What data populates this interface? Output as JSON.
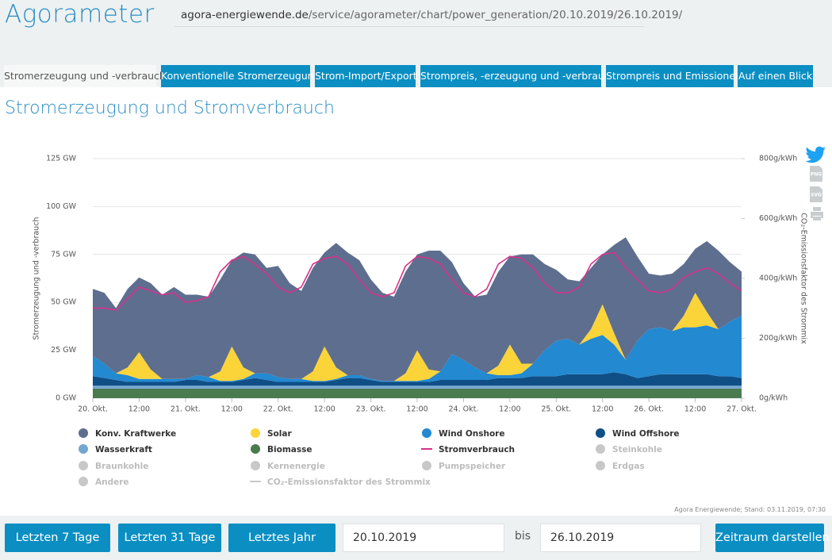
{
  "header": {
    "title": "Agorameter",
    "url_domain": "agora-energiewende.de",
    "url_path": "/service/agorameter/chart/power_generation/20.10.2019/26.10.2019/"
  },
  "tabs": [
    "Stromerzeugung und -verbrauch",
    "Konventionelle Stromerzeugung",
    "Strom-Import/Export",
    "Strompreis, -erzeugung und -verbrauch",
    "Strompreis und Emissionen",
    "Auf einen Blick"
  ],
  "heading": "Stromerzeugung und Stromverbrauch",
  "export": [
    "PNG",
    "SVG"
  ],
  "chart_data": {
    "type": "area",
    "stacked": true,
    "ylabel": "Stromerzeugung und -verbrauch",
    "y2label": "CO₂-Emissionsfaktor des Strommix",
    "credit": "Agora Energiewende; Stand: 03.11.2019, 07:30",
    "grid": true,
    "x": [
      0,
      3,
      6,
      9,
      12,
      15,
      18,
      21,
      24,
      27,
      30,
      33,
      36,
      39,
      42,
      45,
      48,
      51,
      54,
      57,
      60,
      63,
      66,
      69,
      72,
      75,
      78,
      81,
      84,
      87,
      90,
      93,
      96,
      99,
      102,
      105,
      108,
      111,
      114,
      117,
      120,
      123,
      126,
      129,
      132,
      135,
      138,
      141,
      144,
      147,
      150,
      153,
      156,
      159,
      162,
      165,
      168
    ],
    "xlim": [
      0,
      168
    ],
    "xticks": [
      {
        "value": 0,
        "label": "20. Okt."
      },
      {
        "value": 12,
        "label": "12:00"
      },
      {
        "value": 24,
        "label": "21. Okt."
      },
      {
        "value": 36,
        "label": "12:00"
      },
      {
        "value": 48,
        "label": "22. Okt."
      },
      {
        "value": 60,
        "label": "12:00"
      },
      {
        "value": 72,
        "label": "23. Okt."
      },
      {
        "value": 84,
        "label": "12:00"
      },
      {
        "value": 96,
        "label": "24. Okt."
      },
      {
        "value": 108,
        "label": "12:00"
      },
      {
        "value": 120,
        "label": "25. Okt."
      },
      {
        "value": 132,
        "label": "12:00"
      },
      {
        "value": 144,
        "label": "26. Okt."
      },
      {
        "value": 156,
        "label": "12:00"
      },
      {
        "value": 168,
        "label": "27. Okt."
      }
    ],
    "ylim": [
      0,
      125
    ],
    "yticks": [
      {
        "value": 0,
        "label": "0 GW"
      },
      {
        "value": 25,
        "label": "25 GW"
      },
      {
        "value": 50,
        "label": "50 GW"
      },
      {
        "value": 75,
        "label": "75 GW"
      },
      {
        "value": 100,
        "label": "100 GW"
      },
      {
        "value": 125,
        "label": "125 GW"
      }
    ],
    "y2lim": [
      0,
      800
    ],
    "y2ticks": [
      {
        "value": 0,
        "label": "0g/kWh"
      },
      {
        "value": 200,
        "label": "200g/kWh"
      },
      {
        "value": 400,
        "label": "400g/kWh"
      },
      {
        "value": 600,
        "label": "600g/kWh"
      },
      {
        "value": 800,
        "label": "800g/kWh"
      }
    ],
    "series": [
      {
        "name": "Konv. Kraftwerke",
        "color": "#5e6e8e",
        "values": [
          35,
          37,
          34,
          41,
          39,
          45,
          44,
          48,
          44,
          42,
          42,
          48,
          45,
          60,
          62,
          55,
          58,
          50,
          46,
          54,
          49,
          65,
          64,
          60,
          52,
          46,
          44,
          53,
          50,
          62,
          63,
          48,
          40,
          37,
          41,
          49,
          46,
          57,
          57,
          45,
          37,
          31,
          33,
          32,
          26,
          46,
          64,
          44,
          29,
          27,
          30,
          27,
          23,
          37,
          41,
          31,
          23
        ]
      },
      {
        "name": "Solar",
        "color": "#fbd43a",
        "values": [
          0,
          0,
          0,
          4,
          14,
          5,
          0,
          0,
          0,
          0,
          0,
          5,
          18,
          6,
          0,
          0,
          0,
          0,
          0,
          5,
          18,
          6,
          0,
          0,
          0,
          0,
          0,
          4,
          16,
          5,
          0,
          0,
          0,
          0,
          0,
          5,
          16,
          5,
          0,
          0,
          0,
          0,
          0,
          5,
          16,
          6,
          0,
          0,
          0,
          0,
          0,
          6,
          18,
          7,
          0,
          0,
          0
        ]
      },
      {
        "name": "Wind Onshore",
        "color": "#2389d1",
        "values": [
          10.5,
          7.5,
          3.5,
          3.5,
          1.5,
          1.5,
          1.5,
          1.5,
          0.5,
          2.5,
          2.5,
          0.5,
          0.5,
          0.5,
          2.5,
          3.5,
          2.5,
          1.5,
          1.5,
          0.5,
          0.5,
          0.5,
          1.5,
          1.5,
          0.5,
          0.5,
          0.5,
          0.5,
          0.5,
          1.5,
          4.5,
          13.5,
          10.5,
          6.5,
          3.5,
          1.5,
          1.5,
          2.5,
          6.5,
          13.5,
          18.5,
          18.5,
          15.5,
          18.5,
          20.5,
          14.5,
          7.5,
          19.5,
          24.5,
          24.5,
          22.5,
          24.5,
          24.5,
          25.5,
          24.5,
          28.5,
          32.5
        ]
      },
      {
        "name": "Wind Offshore",
        "color": "#0f4f86",
        "values": [
          5,
          4,
          3,
          2,
          2,
          2,
          2,
          2,
          3,
          3,
          2,
          2,
          2,
          3,
          4,
          3,
          2,
          2,
          2,
          2,
          2,
          3,
          4,
          4,
          3,
          2,
          2,
          2,
          2,
          2,
          3,
          3,
          3,
          3,
          3,
          4,
          4,
          4,
          5,
          5,
          5,
          6,
          6,
          6,
          6,
          7,
          6,
          4,
          5,
          6,
          6,
          6,
          6,
          6,
          5,
          5,
          4
        ]
      },
      {
        "name": "Wasserkraft",
        "color": "#74a6d2",
        "values": [
          1.5,
          1.5,
          1.5,
          1.5,
          1.5,
          1.5,
          1.5,
          1.5,
          1.5,
          1.5,
          1.5,
          1.5,
          1.5,
          1.5,
          1.5,
          1.5,
          1.5,
          1.5,
          1.5,
          1.5,
          1.5,
          1.5,
          1.5,
          1.5,
          1.5,
          1.5,
          1.5,
          1.5,
          1.5,
          1.5,
          1.5,
          1.5,
          1.5,
          1.5,
          1.5,
          1.5,
          1.5,
          1.5,
          1.5,
          1.5,
          1.5,
          1.5,
          1.5,
          1.5,
          1.5,
          1.5,
          1.5,
          1.5,
          1.5,
          1.5,
          1.5,
          1.5,
          1.5,
          1.5,
          1.5,
          1.5,
          1.5
        ]
      },
      {
        "name": "Biomasse",
        "color": "#4a7b4f",
        "values": [
          5,
          5,
          5,
          5,
          5,
          5,
          5,
          5,
          5,
          5,
          5,
          5,
          5,
          5,
          5,
          5,
          5,
          5,
          5,
          5,
          5,
          5,
          5,
          5,
          5,
          5,
          5,
          5,
          5,
          5,
          5,
          5,
          5,
          5,
          5,
          5,
          5,
          5,
          5,
          5,
          5,
          5,
          5,
          5,
          5,
          5,
          5,
          5,
          5,
          5,
          5,
          5,
          5,
          5,
          5,
          5,
          5
        ]
      },
      {
        "name": "Stromverbrauch",
        "color": "#d6338c",
        "type": "line",
        "values": [
          47,
          47,
          46,
          52,
          58,
          56,
          54,
          55,
          50,
          51,
          53,
          66,
          72,
          74,
          70,
          65,
          58,
          55,
          58,
          70,
          73,
          74,
          70,
          62,
          55,
          53,
          55,
          69,
          74,
          73,
          70,
          62,
          55,
          53,
          57,
          70,
          74,
          73,
          68,
          60,
          55,
          55,
          58,
          70,
          75,
          76,
          68,
          62,
          56,
          55,
          57,
          63,
          66,
          68,
          65,
          60,
          56
        ]
      }
    ],
    "hidden_series": [
      {
        "name": "Steinkohle"
      },
      {
        "name": "Braunkohle"
      },
      {
        "name": "Kernenergie"
      },
      {
        "name": "Pumpspeicher"
      },
      {
        "name": "Erdgas"
      },
      {
        "name": "Andere"
      },
      {
        "name": "CO₂-Emissionsfaktor des Strommix",
        "symbol": "line"
      }
    ],
    "hidden_color": "#c8c8c8"
  },
  "controls": {
    "buttons": [
      "Letzten 7 Tage",
      "Letzten 31 Tage",
      "Letztes Jahr"
    ],
    "from": "20.10.2019",
    "separator": "bis",
    "to": "26.10.2019",
    "submit": "Zeitraum darstellen"
  }
}
